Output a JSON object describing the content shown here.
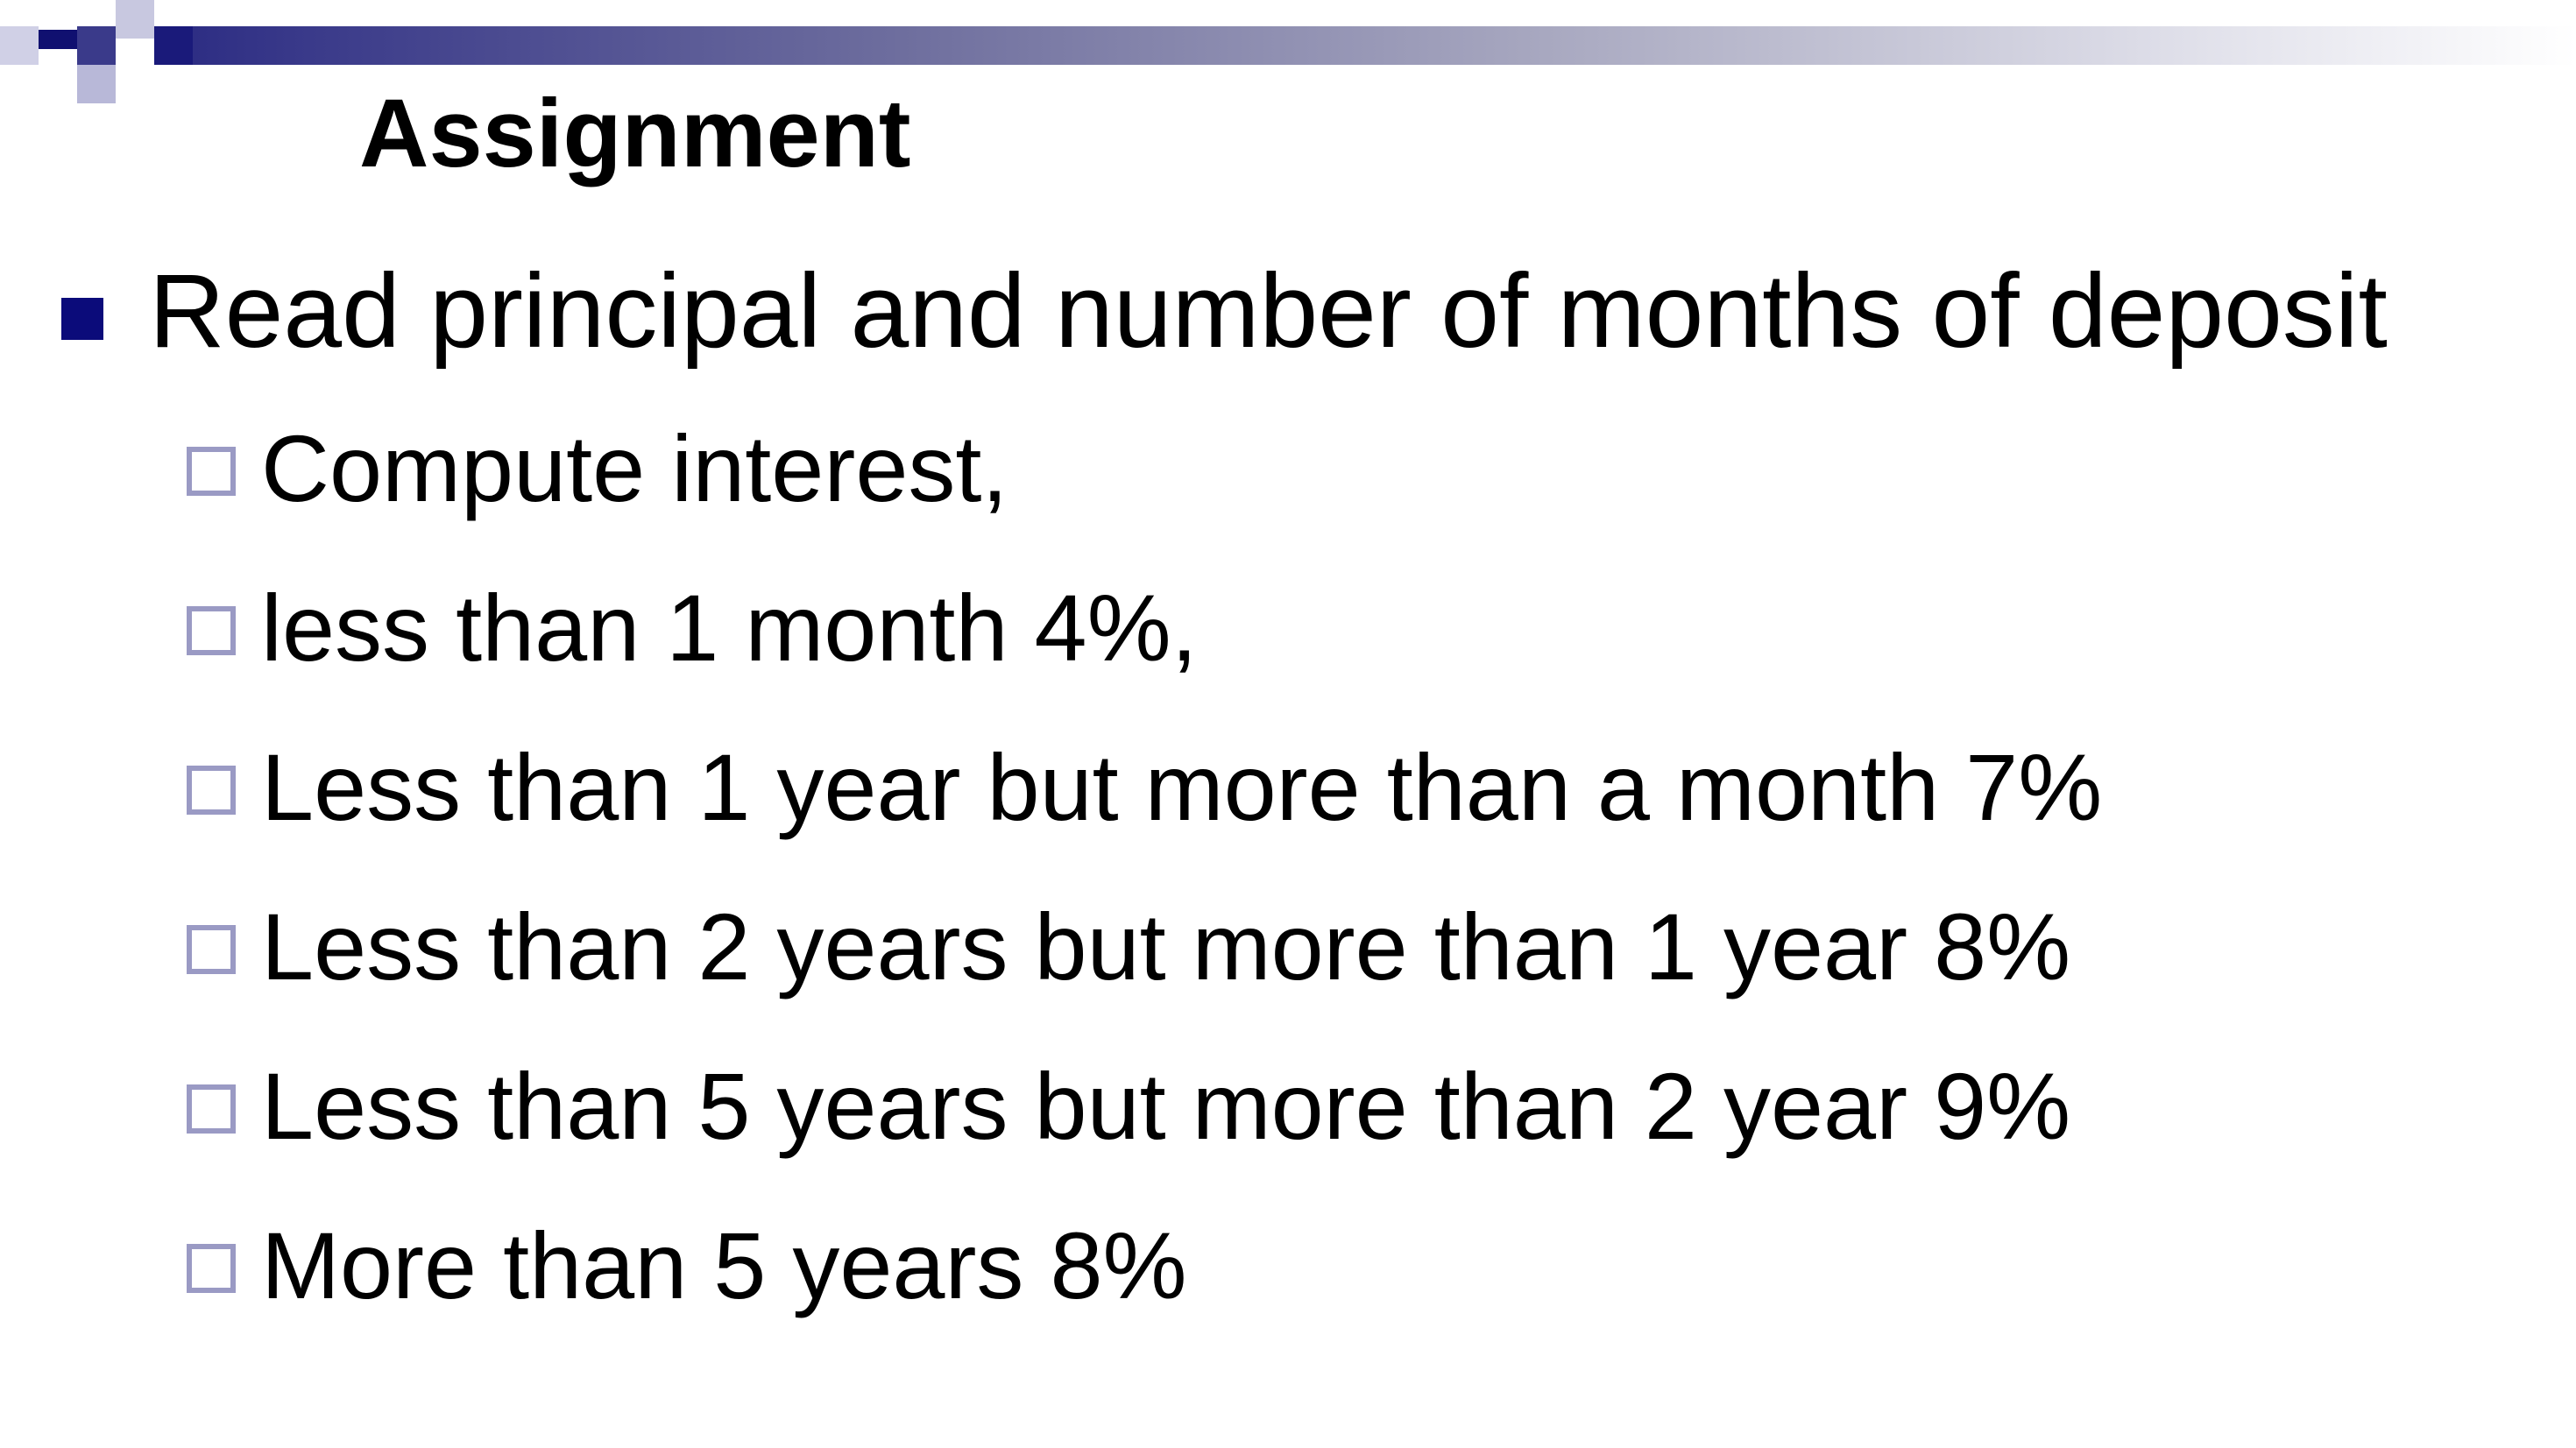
{
  "slide": {
    "title": "Assignment",
    "main_bullet": "Read principal and number of months of deposit",
    "sub_bullets": [
      "Compute interest,",
      "less than 1 month 4%,",
      "Less than 1 year but more than a month 7%",
      "Less than 2 years but more than 1 year 8%",
      "Less than 5 years but more than 2 year 9%",
      "More than 5 years 8%"
    ]
  },
  "colors": {
    "accent": "#0b0b7a",
    "hollow_bullet": "#9a9ac4"
  }
}
